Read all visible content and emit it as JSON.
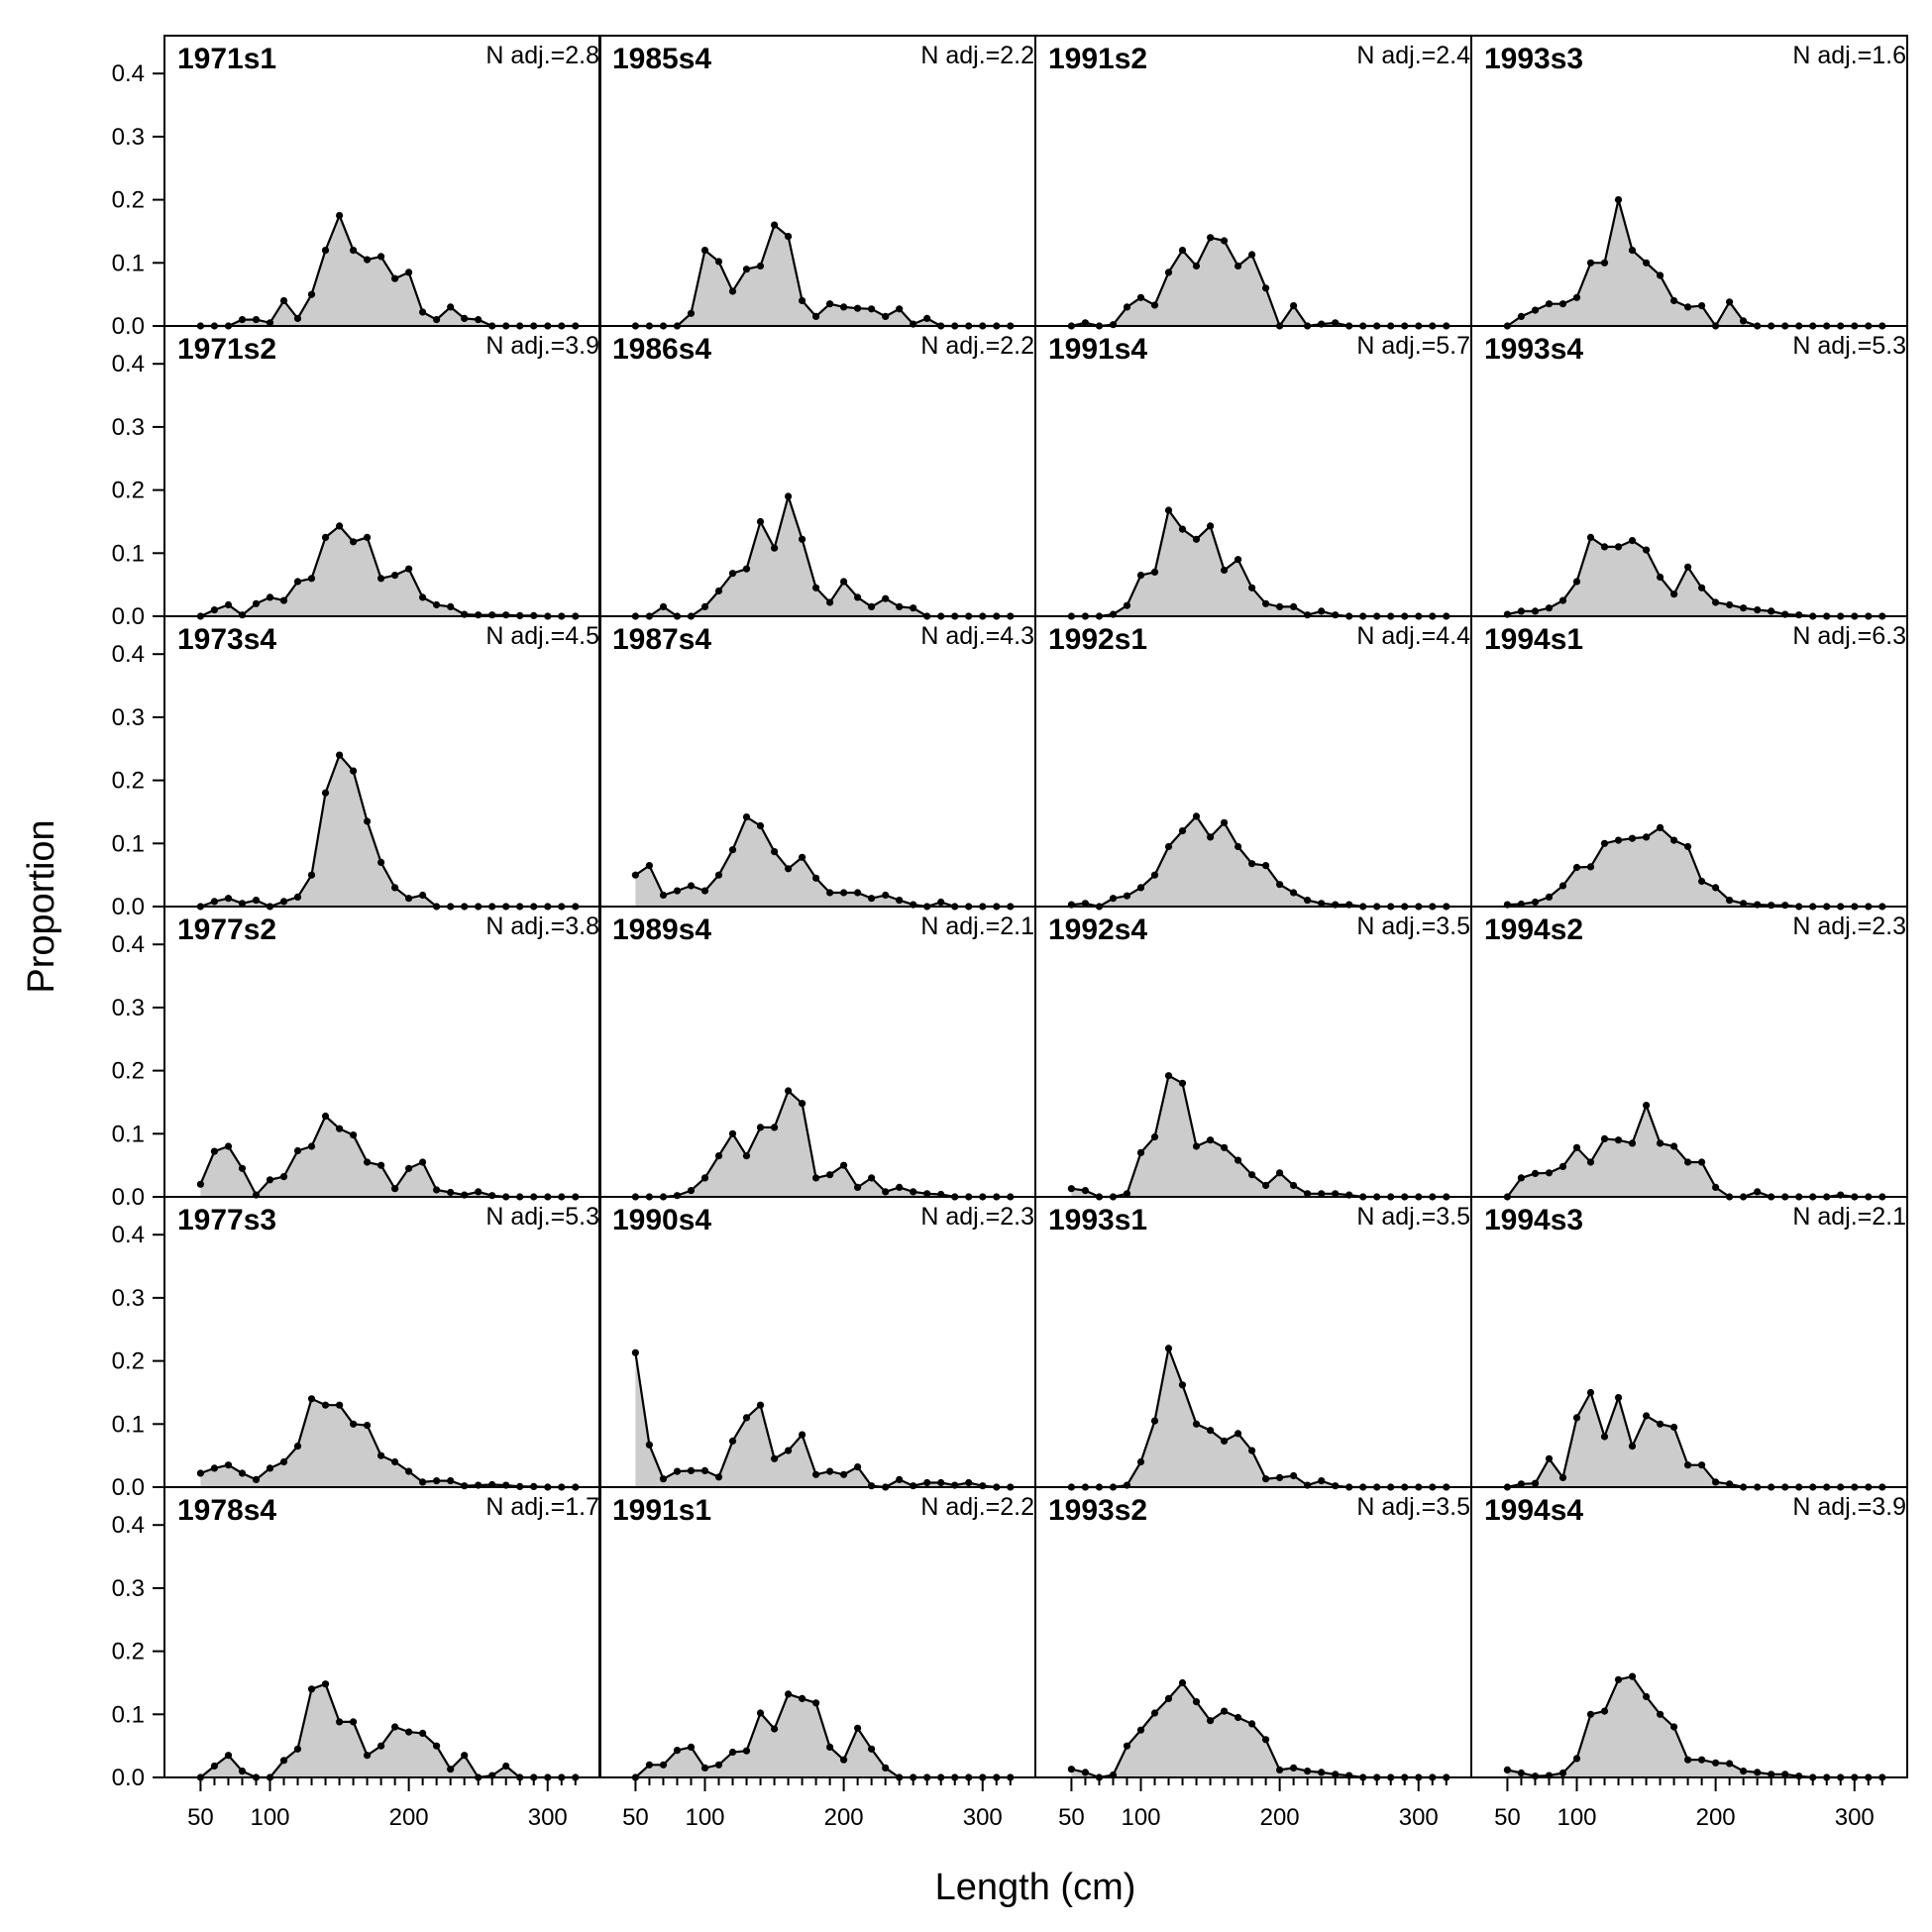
{
  "chart_data": {
    "type": "area",
    "xlabel": "Length (cm)",
    "ylabel": "Proportion",
    "xlim": [
      24,
      338
    ],
    "ylim": [
      0,
      0.46
    ],
    "xticks": [
      50,
      100,
      200,
      300
    ],
    "xtick_labels": [
      "50",
      "100",
      "200",
      "300"
    ],
    "yticks": [
      0,
      0.1,
      0.2,
      0.3,
      0.4
    ],
    "ytick_labels": [
      "0.0",
      "0.1",
      "0.2",
      "0.3",
      "0.4"
    ],
    "x": [
      50,
      60,
      70,
      80,
      90,
      100,
      110,
      120,
      130,
      140,
      150,
      160,
      170,
      180,
      190,
      200,
      210,
      220,
      230,
      240,
      250,
      260,
      270,
      280,
      290,
      300,
      310,
      320
    ],
    "layout": {
      "rows": 6,
      "cols": 4,
      "order": "column-major"
    },
    "colors": {
      "fill": "#cccccc",
      "line": "#000000",
      "point": "#000000",
      "frame": "#000000"
    },
    "panels": [
      {
        "title": "1971s1",
        "nadj": "N adj.=2.8",
        "values": [
          0,
          0,
          0,
          0.01,
          0.01,
          0.005,
          0.04,
          0.012,
          0.05,
          0.12,
          0.175,
          0.12,
          0.105,
          0.11,
          0.075,
          0.085,
          0.022,
          0.01,
          0.03,
          0.012,
          0.01,
          0,
          0,
          0,
          0,
          0,
          0,
          0
        ]
      },
      {
        "title": "1971s2",
        "nadj": "N adj.=3.9",
        "values": [
          0,
          0.01,
          0.018,
          0.002,
          0.02,
          0.03,
          0.025,
          0.055,
          0.06,
          0.125,
          0.143,
          0.118,
          0.125,
          0.06,
          0.065,
          0.075,
          0.03,
          0.018,
          0.015,
          0.003,
          0.002,
          0.002,
          0.002,
          0.001,
          0.001,
          0,
          0,
          0
        ]
      },
      {
        "title": "1973s4",
        "nadj": "N adj.=4.5",
        "values": [
          0,
          0.008,
          0.013,
          0.005,
          0.01,
          0,
          0.008,
          0.015,
          0.05,
          0.18,
          0.24,
          0.215,
          0.135,
          0.07,
          0.03,
          0.013,
          0.018,
          0,
          0,
          0,
          0,
          0,
          0,
          0,
          0,
          0,
          0,
          0
        ]
      },
      {
        "title": "1977s2",
        "nadj": "N adj.=3.8",
        "values": [
          0.02,
          0.072,
          0.08,
          0.045,
          0.003,
          0.027,
          0.032,
          0.073,
          0.08,
          0.128,
          0.108,
          0.098,
          0.055,
          0.05,
          0.013,
          0.045,
          0.055,
          0.011,
          0.007,
          0.003,
          0.008,
          0.002,
          0,
          0,
          0,
          0,
          0,
          0
        ]
      },
      {
        "title": "1977s3",
        "nadj": "N adj.=5.3",
        "values": [
          0.022,
          0.03,
          0.035,
          0.022,
          0.012,
          0.03,
          0.04,
          0.065,
          0.14,
          0.13,
          0.13,
          0.1,
          0.098,
          0.05,
          0.04,
          0.025,
          0.008,
          0.01,
          0.01,
          0.002,
          0.003,
          0.004,
          0.003,
          0.001,
          0.001,
          0,
          0,
          0
        ]
      },
      {
        "title": "1978s4",
        "nadj": "N adj.=1.7",
        "values": [
          0,
          0.018,
          0.035,
          0.01,
          0,
          0,
          0.027,
          0.045,
          0.14,
          0.148,
          0.088,
          0.088,
          0.035,
          0.05,
          0.08,
          0.072,
          0.07,
          0.05,
          0.013,
          0.035,
          0,
          0.003,
          0.018,
          0,
          0,
          0,
          0,
          0
        ]
      },
      {
        "title": "1985s4",
        "nadj": "N adj.=2.2",
        "values": [
          0,
          0,
          0,
          0,
          0.02,
          0.12,
          0.102,
          0.055,
          0.09,
          0.095,
          0.16,
          0.142,
          0.04,
          0.015,
          0.035,
          0.03,
          0.028,
          0.027,
          0.015,
          0.027,
          0.003,
          0.012,
          0,
          0,
          0,
          0,
          0,
          0
        ]
      },
      {
        "title": "1986s4",
        "nadj": "N adj.=2.2",
        "values": [
          0,
          0,
          0.015,
          0,
          0,
          0.015,
          0.04,
          0.068,
          0.075,
          0.15,
          0.108,
          0.19,
          0.122,
          0.045,
          0.022,
          0.055,
          0.03,
          0.015,
          0.028,
          0.015,
          0.013,
          0,
          0,
          0,
          0,
          0,
          0,
          0
        ]
      },
      {
        "title": "1987s4",
        "nadj": "N adj.=4.3",
        "values": [
          0.05,
          0.065,
          0.018,
          0.025,
          0.033,
          0.025,
          0.05,
          0.09,
          0.142,
          0.128,
          0.087,
          0.06,
          0.078,
          0.045,
          0.022,
          0.022,
          0.022,
          0.013,
          0.018,
          0.01,
          0.003,
          0,
          0.007,
          0,
          0,
          0,
          0,
          0
        ]
      },
      {
        "title": "1989s4",
        "nadj": "N adj.=2.1",
        "values": [
          0,
          0,
          0,
          0.002,
          0.01,
          0.03,
          0.065,
          0.1,
          0.065,
          0.11,
          0.11,
          0.168,
          0.148,
          0.03,
          0.035,
          0.05,
          0.015,
          0.03,
          0.008,
          0.015,
          0.008,
          0.005,
          0.004,
          0,
          0,
          0,
          0,
          0
        ]
      },
      {
        "title": "1990s4",
        "nadj": "N adj.=2.3",
        "values": [
          0.213,
          0.067,
          0.013,
          0.025,
          0.026,
          0.026,
          0.016,
          0.073,
          0.11,
          0.13,
          0.045,
          0.058,
          0.083,
          0.02,
          0.025,
          0.02,
          0.032,
          0.002,
          0,
          0.012,
          0.002,
          0.007,
          0.007,
          0.003,
          0.007,
          0.002,
          0,
          0
        ]
      },
      {
        "title": "1991s1",
        "nadj": "N adj.=2.2",
        "values": [
          0,
          0.02,
          0.02,
          0.043,
          0.048,
          0.015,
          0.02,
          0.04,
          0.042,
          0.102,
          0.077,
          0.132,
          0.125,
          0.118,
          0.048,
          0.028,
          0.078,
          0.045,
          0.015,
          0,
          0,
          0,
          0,
          0,
          0,
          0,
          0,
          0
        ]
      },
      {
        "title": "1991s2",
        "nadj": "N adj.=2.4",
        "values": [
          0,
          0.005,
          0,
          0.002,
          0.03,
          0.045,
          0.033,
          0.085,
          0.12,
          0.095,
          0.14,
          0.135,
          0.095,
          0.113,
          0.06,
          0,
          0.032,
          0,
          0.003,
          0.005,
          0,
          0,
          0,
          0,
          0,
          0,
          0,
          0
        ]
      },
      {
        "title": "1991s4",
        "nadj": "N adj.=5.7",
        "values": [
          0,
          0,
          0,
          0.003,
          0.017,
          0.065,
          0.07,
          0.168,
          0.138,
          0.122,
          0.143,
          0.073,
          0.09,
          0.045,
          0.02,
          0.015,
          0.015,
          0.002,
          0.008,
          0.002,
          0,
          0,
          0,
          0,
          0,
          0,
          0,
          0
        ]
      },
      {
        "title": "1992s1",
        "nadj": "N adj.=4.4",
        "values": [
          0.003,
          0.005,
          0,
          0.013,
          0.017,
          0.03,
          0.05,
          0.095,
          0.12,
          0.143,
          0.11,
          0.133,
          0.095,
          0.068,
          0.065,
          0.035,
          0.022,
          0.01,
          0.005,
          0.003,
          0.003,
          0,
          0,
          0,
          0,
          0,
          0,
          0
        ]
      },
      {
        "title": "1992s4",
        "nadj": "N adj.=3.5",
        "values": [
          0.013,
          0.01,
          0,
          0,
          0.005,
          0.07,
          0.095,
          0.192,
          0.18,
          0.08,
          0.09,
          0.078,
          0.058,
          0.035,
          0.018,
          0.038,
          0.018,
          0.005,
          0.005,
          0.005,
          0.003,
          0,
          0,
          0,
          0,
          0,
          0,
          0
        ]
      },
      {
        "title": "1993s1",
        "nadj": "N adj.=3.5",
        "values": [
          0,
          0,
          0,
          0,
          0.003,
          0.04,
          0.105,
          0.22,
          0.162,
          0.1,
          0.09,
          0.073,
          0.085,
          0.058,
          0.013,
          0.015,
          0.018,
          0.003,
          0.01,
          0.002,
          0,
          0,
          0,
          0,
          0,
          0,
          0,
          0
        ]
      },
      {
        "title": "1993s2",
        "nadj": "N adj.=3.5",
        "values": [
          0.013,
          0.008,
          0,
          0.004,
          0.05,
          0.075,
          0.102,
          0.125,
          0.15,
          0.12,
          0.09,
          0.105,
          0.095,
          0.085,
          0.06,
          0.012,
          0.015,
          0.01,
          0.008,
          0.005,
          0.003,
          0,
          0,
          0,
          0,
          0,
          0,
          0
        ]
      },
      {
        "title": "1993s3",
        "nadj": "N adj.=1.6",
        "values": [
          0,
          0.015,
          0.025,
          0.035,
          0.035,
          0.045,
          0.1,
          0.1,
          0.2,
          0.12,
          0.1,
          0.08,
          0.04,
          0.03,
          0.032,
          0,
          0.038,
          0.008,
          0,
          0,
          0,
          0,
          0,
          0,
          0,
          0,
          0,
          0
        ]
      },
      {
        "title": "1993s4",
        "nadj": "N adj.=5.3",
        "values": [
          0.003,
          0.008,
          0.008,
          0.013,
          0.025,
          0.055,
          0.125,
          0.11,
          0.11,
          0.12,
          0.105,
          0.062,
          0.035,
          0.078,
          0.045,
          0.022,
          0.018,
          0.013,
          0.01,
          0.008,
          0.003,
          0.002,
          0,
          0,
          0,
          0,
          0,
          0
        ]
      },
      {
        "title": "1994s1",
        "nadj": "N adj.=6.3",
        "values": [
          0.003,
          0.004,
          0.007,
          0.015,
          0.033,
          0.062,
          0.063,
          0.1,
          0.105,
          0.108,
          0.11,
          0.125,
          0.105,
          0.095,
          0.04,
          0.03,
          0.01,
          0.005,
          0.003,
          0.002,
          0.002,
          0,
          0,
          0,
          0,
          0,
          0,
          0
        ]
      },
      {
        "title": "1994s2",
        "nadj": "N adj.=2.3",
        "values": [
          0,
          0.03,
          0.037,
          0.038,
          0.048,
          0.078,
          0.055,
          0.092,
          0.09,
          0.085,
          0.145,
          0.085,
          0.08,
          0.055,
          0.055,
          0.015,
          0,
          0,
          0.008,
          0,
          0,
          0,
          0,
          0,
          0.003,
          0,
          0,
          0
        ]
      },
      {
        "title": "1994s3",
        "nadj": "N adj.=2.1",
        "values": [
          0,
          0.005,
          0.006,
          0.045,
          0.015,
          0.11,
          0.15,
          0.08,
          0.142,
          0.065,
          0.113,
          0.1,
          0.095,
          0.035,
          0.035,
          0.008,
          0.005,
          0,
          0,
          0,
          0,
          0,
          0,
          0,
          0,
          0,
          0,
          0
        ]
      },
      {
        "title": "1994s4",
        "nadj": "N adj.=3.9",
        "values": [
          0.012,
          0.007,
          0.002,
          0.003,
          0.007,
          0.03,
          0.1,
          0.105,
          0.155,
          0.16,
          0.128,
          0.1,
          0.08,
          0.028,
          0.028,
          0.023,
          0.022,
          0.01,
          0.008,
          0.005,
          0.005,
          0.002,
          0,
          0,
          0,
          0,
          0,
          0
        ]
      }
    ]
  }
}
